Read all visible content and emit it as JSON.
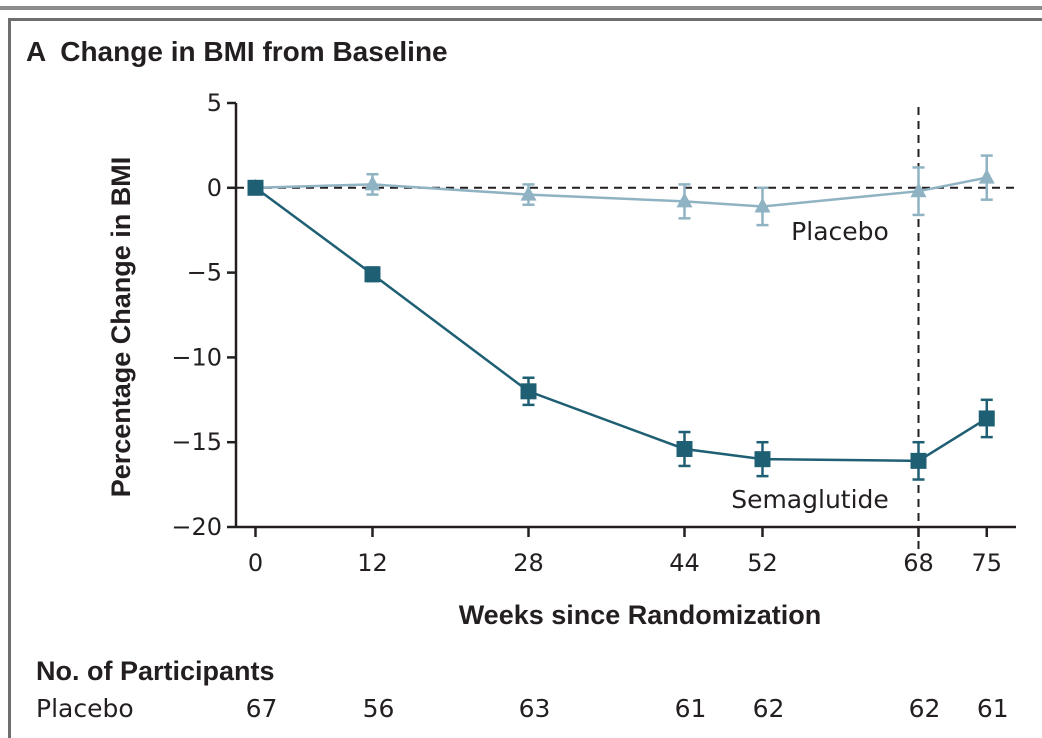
{
  "panel": {
    "letter": "A",
    "title": "Change in BMI from Baseline"
  },
  "colors": {
    "semaglutide": "#1f5f73",
    "placebo": "#8fb3c2",
    "axis": "#231f20"
  },
  "chart_data": {
    "type": "line",
    "title": "Change in BMI from Baseline",
    "xlabel": "Weeks since Randomization",
    "ylabel": "Percentage Change in BMI",
    "x": [
      0,
      12,
      28,
      44,
      52,
      68,
      75
    ],
    "x_tick_labels": [
      "0",
      "12",
      "28",
      "44",
      "52",
      "68",
      "75"
    ],
    "xlim": [
      -2,
      78
    ],
    "ylim": [
      -20,
      5
    ],
    "y_ticks": [
      5,
      0,
      -5,
      -10,
      -15,
      -20
    ],
    "y_tick_labels": [
      "5",
      "0",
      "−5",
      "−10",
      "−15",
      "−20"
    ],
    "reference_lines": [
      {
        "axis": "y",
        "value": 0,
        "style": "dashed"
      },
      {
        "axis": "x",
        "value": 68,
        "style": "dashed"
      }
    ],
    "series": [
      {
        "name": "Placebo",
        "marker": "triangle",
        "values": [
          0,
          0.2,
          -0.4,
          -0.8,
          -1.1,
          -0.2,
          0.6
        ],
        "error": [
          0.2,
          0.6,
          0.6,
          1.0,
          1.1,
          1.4,
          1.3
        ]
      },
      {
        "name": "Semaglutide",
        "marker": "square",
        "values": [
          0,
          -5.1,
          -12.0,
          -15.4,
          -16.0,
          -16.1,
          -13.6
        ],
        "error": [
          0.2,
          0.4,
          0.8,
          1.0,
          1.0,
          1.1,
          1.1
        ]
      }
    ]
  },
  "participants": {
    "title": "No. of Participants",
    "rows": [
      {
        "label": "Placebo",
        "counts": [
          "67",
          "56",
          "63",
          "61",
          "62",
          "62",
          "61"
        ]
      }
    ]
  }
}
